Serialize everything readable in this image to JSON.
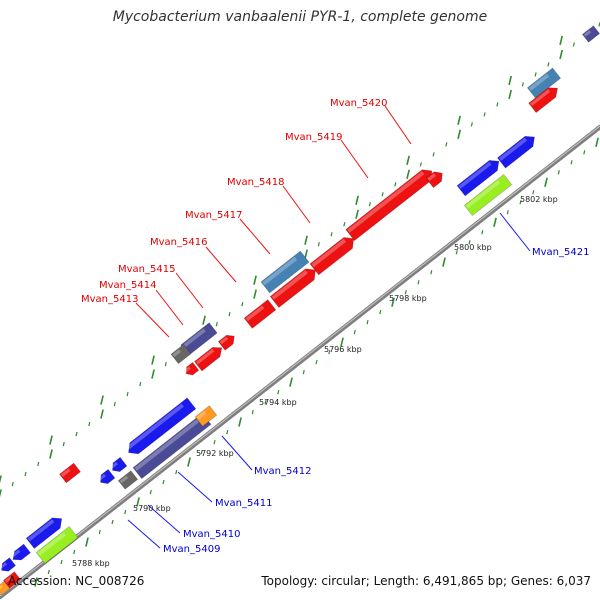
{
  "title": "Mycobacterium vanbaalenii PYR-1, complete genome",
  "footer": {
    "accession": "Accession: NC_008726",
    "summary": "Topology: circular; Length: 6,491,865 bp; Genes: 6,037"
  },
  "colors": {
    "backbone": "#888888",
    "tick": "#2e8b2e",
    "red_gene": "#ee1111",
    "blue_gene": "#1a1aee",
    "slate_gene": "#4a4a96",
    "steel_gene": "#4682b4",
    "lime_gene": "#99ee22",
    "gray_gene": "#666666",
    "orange_gene": "#ff9922",
    "label_red": "#dd0000",
    "label_blue": "#0000cc"
  },
  "kbp_labels": [
    "5788 kbp",
    "5790 kbp",
    "5792 kbp",
    "5794 kbp",
    "5796 kbp",
    "5798 kbp",
    "5800 kbp",
    "5802 kbp"
  ],
  "top_labels": [
    "Mvan_5413",
    "Mvan_5414",
    "Mvan_5415",
    "Mvan_5416",
    "Mvan_5417",
    "Mvan_5418",
    "Mvan_5419",
    "Mvan_5420"
  ],
  "bottom_labels": [
    "Mvan_5409",
    "Mvan_5410",
    "Mvan_5411",
    "Mvan_5412",
    "Mvan_5421"
  ]
}
